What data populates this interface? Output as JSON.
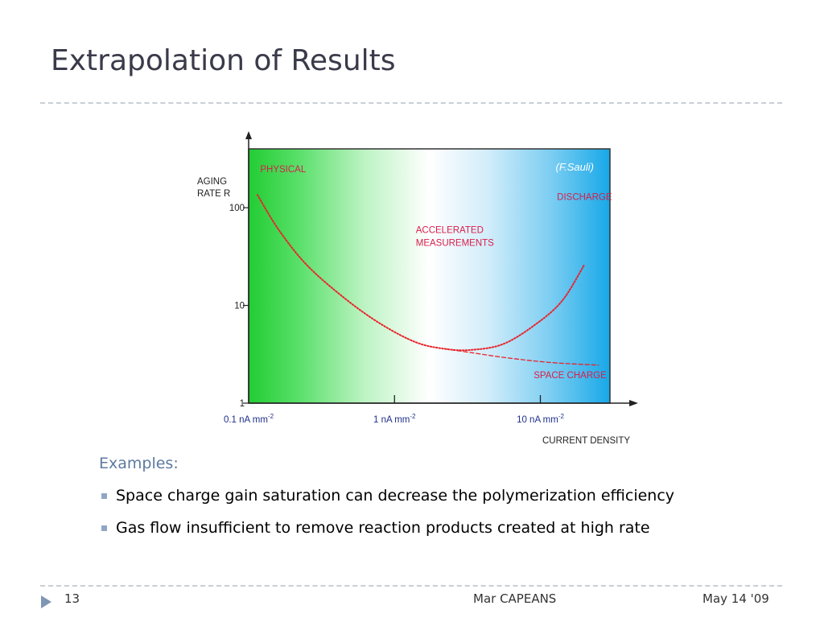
{
  "slide": {
    "title": "Extrapolation of Results",
    "examples_heading": "Examples:",
    "bullets": [
      "Space charge gain saturation can decrease the polymerization efficiency",
      "Gas flow insufficient to remove reaction products created at high rate"
    ]
  },
  "footer": {
    "page_number": "13",
    "author": "Mar CAPEANS",
    "date": "May 14 '09",
    "icon": "play-triangle-icon"
  },
  "colors": {
    "title": "#3a3a4a",
    "accent": "#7f96b4",
    "curve": "#e8242c",
    "label_red": "#d81e4a",
    "gradient_green": "#22cc33",
    "gradient_blue": "#17a8e8"
  },
  "chart_data": {
    "type": "line",
    "credit": "(F.Sauli)",
    "ylabel": "AGING\nRATE  R",
    "xlabel": "CURRENT DENSITY",
    "y_scale": "log",
    "ylim": [
      1,
      400
    ],
    "x_scale": "log",
    "xlim": [
      0.1,
      30
    ],
    "y_ticks": [
      {
        "value": 100,
        "label": "100"
      },
      {
        "value": 10,
        "label": "10"
      },
      {
        "value": 1,
        "label": "1"
      }
    ],
    "x_ticks": [
      {
        "value": 0.1,
        "label": "0.1 nA mm",
        "sup": "-2"
      },
      {
        "value": 1,
        "label": "1 nA mm",
        "sup": "-2"
      },
      {
        "value": 10,
        "label": "10 nA mm",
        "sup": "-2"
      }
    ],
    "regions": [
      {
        "label": "PHYSICAL",
        "x": 0.12,
        "y": 230
      },
      {
        "label": "ACCELERATED\nMEASUREMENTS",
        "x": 1.4,
        "y": 55
      },
      {
        "label": "DISCHARGE",
        "x": 13,
        "y": 120
      },
      {
        "label": "SPACE CHARGE",
        "x": 9,
        "y": 1.8
      }
    ],
    "series": [
      {
        "style": "dotted",
        "x": [
          0.115,
          0.16,
          0.25,
          0.45,
          0.8,
          1.4,
          2.2,
          3.3,
          5.5,
          9,
          14,
          20
        ],
        "y": [
          135,
          60,
          26,
          12,
          6.5,
          4.2,
          3.6,
          3.5,
          4.0,
          6.2,
          11,
          26
        ]
      },
      {
        "style": "dashed",
        "x": [
          2.2,
          3.3,
          6,
          12,
          25
        ],
        "y": [
          3.6,
          3.3,
          2.9,
          2.6,
          2.45
        ]
      }
    ]
  }
}
